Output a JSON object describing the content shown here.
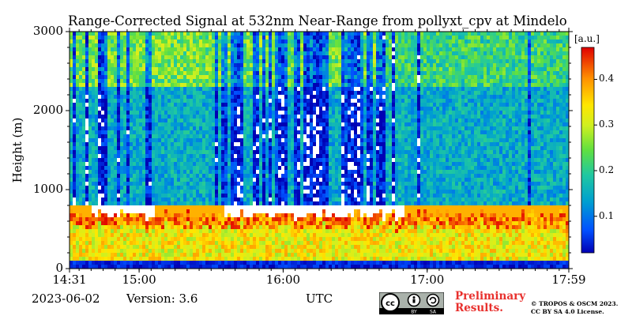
{
  "chart_data": {
    "type": "heatmap",
    "title": "Range-Corrected Signal at 532nm Near-Range from pollyxt_cpv at Mindelo",
    "xlabel": "UTC",
    "ylabel": "Height (m)",
    "x_tick_labels": [
      "14:31",
      "15:00",
      "16:00",
      "17:00",
      "17:59"
    ],
    "x_tick_hours": [
      14.5167,
      15.0,
      16.0,
      17.0,
      17.9833
    ],
    "xlim_hours": [
      14.5167,
      17.9833
    ],
    "y_ticks": [
      0,
      1000,
      2000,
      3000
    ],
    "ylim": [
      0,
      3000
    ],
    "colorbar": {
      "label": "[a.u.]",
      "ticks": [
        0.1,
        0.2,
        0.3,
        0.4
      ],
      "range": [
        0.02,
        0.47
      ],
      "colormap": "jet"
    },
    "approx_layers": [
      {
        "name_desc": "ground clutter",
        "height_range": [
          0,
          80
        ]
      },
      {
        "name_desc": "boundary layer (high signal)",
        "height_range": [
          80,
          700
        ],
        "value": 0.33
      },
      {
        "name_desc": "saturated cloud tops",
        "height_range": [
          620,
          780
        ],
        "value": 0.47
      },
      {
        "name_desc": "free troposphere",
        "height_range": [
          800,
          2300
        ],
        "value": 0.15
      },
      {
        "name_desc": "upper aerosol layer",
        "height_range": [
          2300,
          3000
        ],
        "value": 0.25
      }
    ]
  },
  "footer": {
    "date": "2023-06-02",
    "version": "Version: 3.6",
    "preliminary_line1": "Preliminary",
    "preliminary_line2": "Results.",
    "copyright_line1": "© TROPOS & OSCM 2023.",
    "copyright_line2": "CC BY SA 4.0 License.",
    "license_badge_text": [
      "BY",
      "SA"
    ]
  },
  "colors": {
    "preliminary": "#e8302d",
    "cloud_saturated": "#ffffff"
  }
}
